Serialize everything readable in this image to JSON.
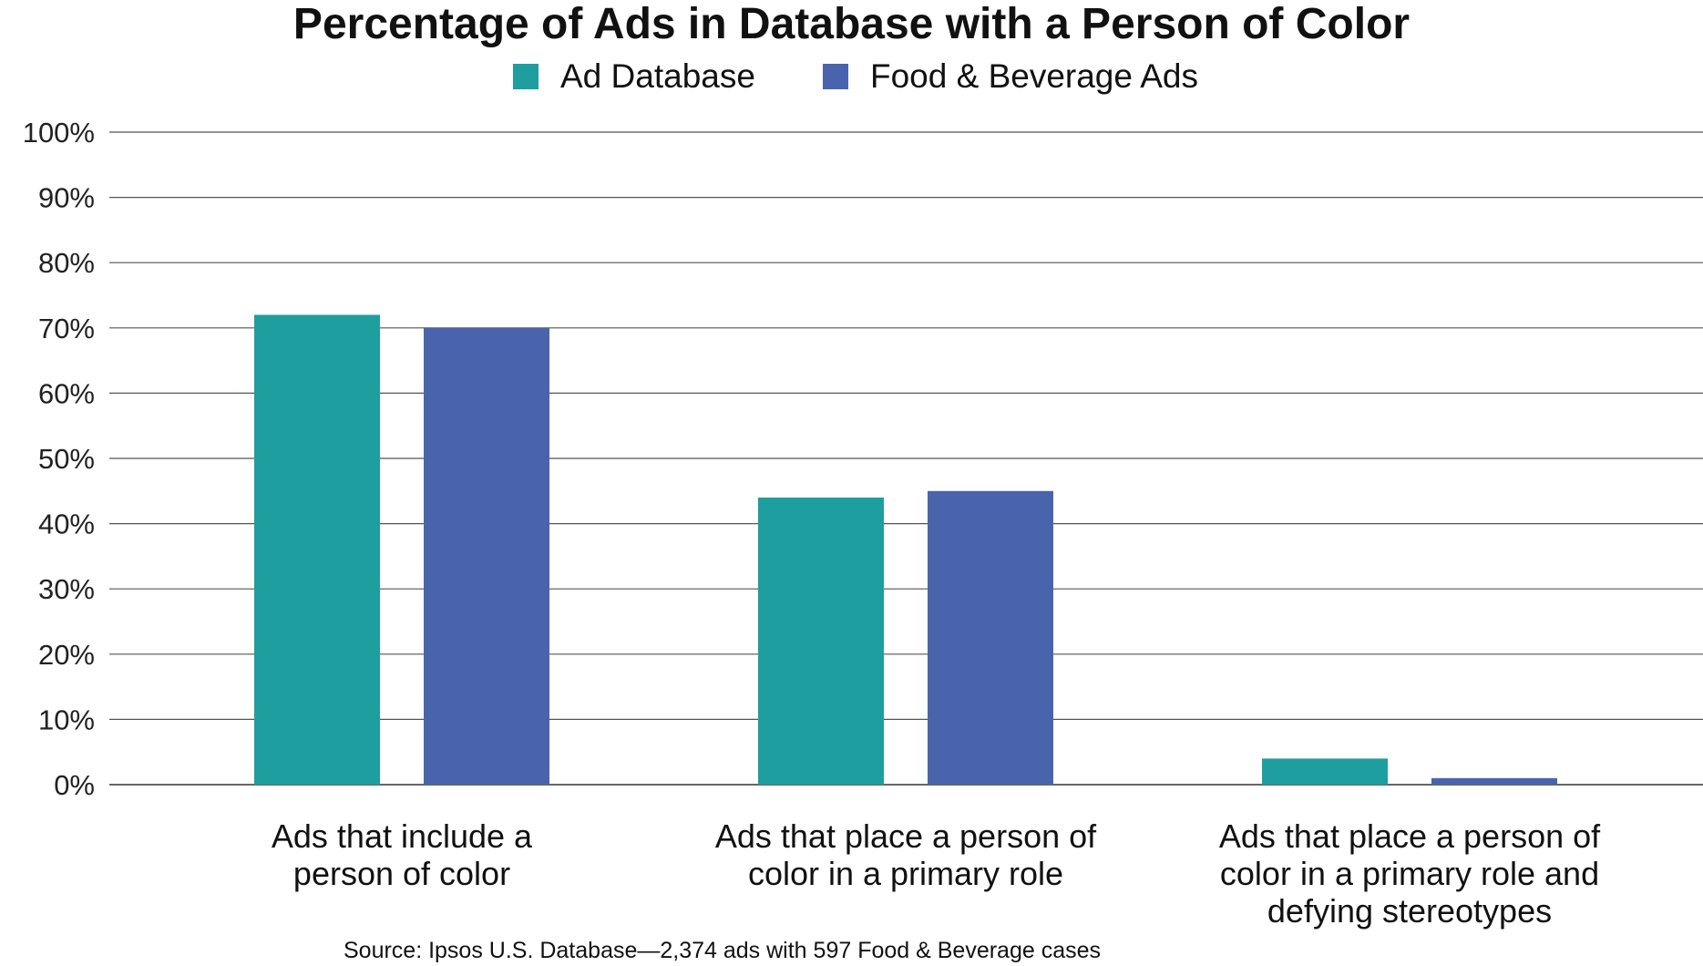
{
  "chart_data": {
    "type": "bar",
    "title": "Percentage of Ads in Database with a Person of Color",
    "categories": [
      "Ads that include a person of color",
      "Ads that place a person of color in a primary role",
      "Ads that place a person of color in a primary role and defying stereotypes"
    ],
    "category_lines": [
      [
        "Ads that include a",
        "person of color"
      ],
      [
        "Ads that place a person of",
        "color in a primary role"
      ],
      [
        "Ads that place a person of",
        "color in a primary role and",
        "defying stereotypes"
      ]
    ],
    "series": [
      {
        "name": "Ad Database",
        "color": "#1e9e9e",
        "values": [
          72,
          44,
          4
        ]
      },
      {
        "name": "Food & Beverage Ads",
        "color": "#4a63ad",
        "values": [
          70,
          45,
          1
        ]
      }
    ],
    "ylim": [
      0,
      100
    ],
    "yticks": [
      0,
      10,
      20,
      30,
      40,
      50,
      60,
      70,
      80,
      90,
      100
    ],
    "ytick_labels": [
      "0%",
      "10%",
      "20%",
      "30%",
      "40%",
      "50%",
      "60%",
      "70%",
      "80%",
      "90%",
      "100%"
    ],
    "grid": true,
    "legend_position": "top-center",
    "source": "Source: Ipsos U.S. Database—2,374 ads with 597 Food & Beverage cases"
  }
}
